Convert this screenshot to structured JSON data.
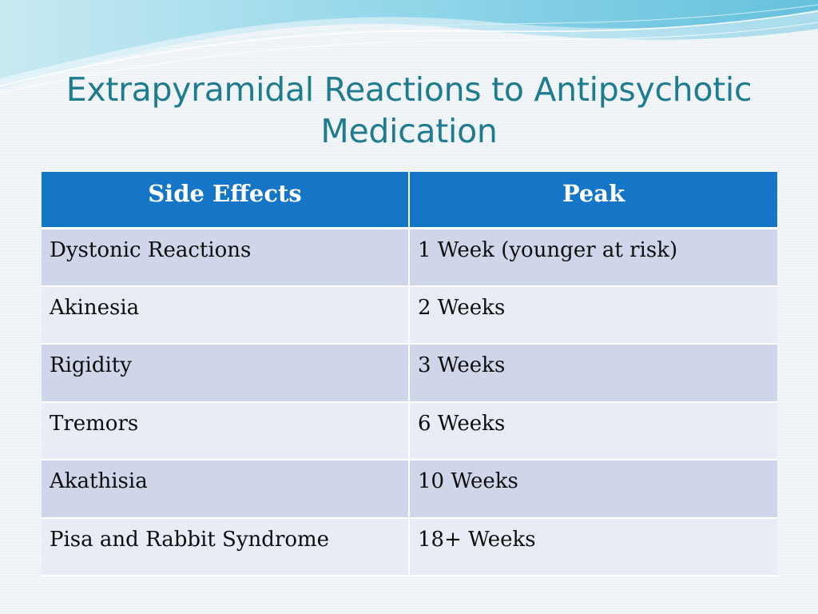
{
  "title": "Extrapyramidal Reactions to Antipsychotic Medication",
  "table": {
    "headers": [
      "Side Effects",
      "Peak"
    ],
    "rows": [
      [
        "Dystonic Reactions",
        "1 Week (younger at risk)"
      ],
      [
        "Akinesia",
        "2 Weeks"
      ],
      [
        "Rigidity",
        "3 Weeks"
      ],
      [
        "Tremors",
        "6 Weeks"
      ],
      [
        "Akathisia",
        "10 Weeks"
      ],
      [
        "Pisa and Rabbit Syndrome",
        "18+ Weeks"
      ]
    ]
  },
  "colors": {
    "title": "#1f7c8e",
    "header_bg": "#1575c6",
    "row_odd": "#cfd6ea",
    "row_even": "#e9ecf5"
  }
}
